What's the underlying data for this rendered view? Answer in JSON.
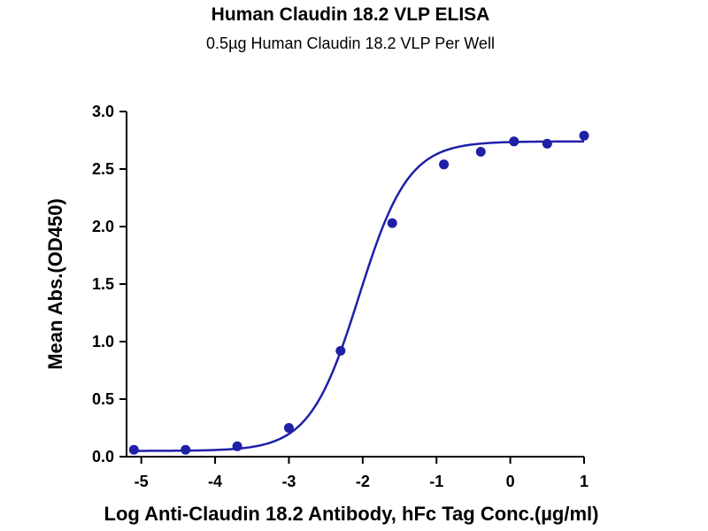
{
  "chart_data": {
    "type": "scatter",
    "title": "Human Claudin 18.2 VLP ELISA",
    "subtitle": "0.5µg Human Claudin 18.2 VLP Per Well",
    "xlabel": "Log Anti-Claudin 18.2 Antibody, hFc Tag Conc.(µg/ml)",
    "ylabel": "Mean Abs.(OD450)",
    "xlim": [
      -5.2,
      1.0
    ],
    "ylim": [
      0.0,
      3.0
    ],
    "x_ticks": [
      -5,
      -4,
      -3,
      -2,
      -1,
      0,
      1
    ],
    "x_tick_labels": [
      "-5",
      "-4",
      "-3",
      "-2",
      "-1",
      "0",
      "1"
    ],
    "y_ticks": [
      0.0,
      0.5,
      1.0,
      1.5,
      2.0,
      2.5,
      3.0
    ],
    "y_tick_labels": [
      "0.0",
      "0.5",
      "1.0",
      "1.5",
      "2.0",
      "2.5",
      "3.0"
    ],
    "grid": false,
    "colors": {
      "series": "#1f1fa8",
      "axis": "#000000"
    },
    "series": [
      {
        "points": {
          "x": [
            -5.1,
            -4.4,
            -3.7,
            -3.0,
            -2.3,
            -1.6,
            -0.9,
            -0.4,
            0.05,
            0.5,
            1.0
          ],
          "y": [
            0.06,
            0.06,
            0.09,
            0.25,
            0.92,
            2.03,
            2.54,
            2.65,
            2.74,
            2.72,
            2.79
          ]
        },
        "fit": {
          "model": "4PL",
          "bottom": 0.05,
          "top": 2.74,
          "log_ec50": -2.05,
          "hill": 1.3,
          "x_range": [
            -5.1,
            1.0
          ]
        }
      }
    ]
  }
}
